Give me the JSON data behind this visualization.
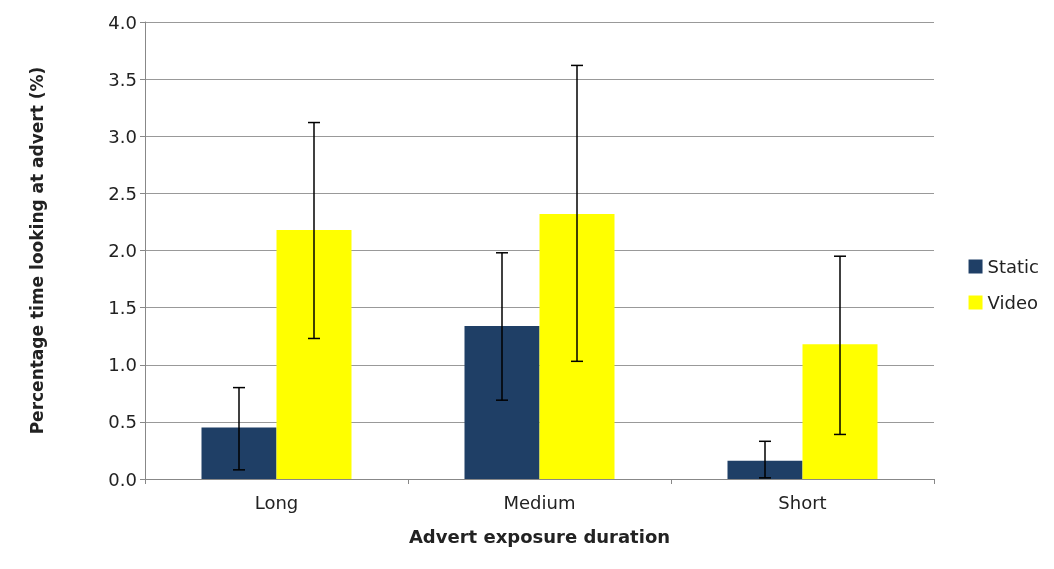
{
  "chart_data": {
    "type": "bar",
    "xlabel": "Advert exposure duration",
    "ylabel": "Percentage time looking at advert (%)",
    "categories": [
      "Long",
      "Medium",
      "Short"
    ],
    "series": [
      {
        "name": "Static",
        "color": "#1f3f66",
        "values": [
          0.45,
          1.34,
          0.16
        ],
        "errors": [
          [
            0.08,
            0.8
          ],
          [
            0.69,
            1.98
          ],
          [
            0.01,
            0.33
          ]
        ]
      },
      {
        "name": "Video",
        "color": "#ffff00",
        "values": [
          2.18,
          2.32,
          1.18
        ],
        "errors": [
          [
            1.23,
            3.12
          ],
          [
            1.03,
            3.62
          ],
          [
            0.39,
            1.95
          ]
        ]
      }
    ],
    "ylim": [
      0,
      4
    ],
    "yticks": [
      {
        "value": 0,
        "label": "0.0"
      },
      {
        "value": 0.5,
        "label": "0.5"
      },
      {
        "value": 1,
        "label": "1.0"
      },
      {
        "value": 1.5,
        "label": "1.5"
      },
      {
        "value": 2,
        "label": "2.0"
      },
      {
        "value": 2.5,
        "label": "2.5"
      },
      {
        "value": 3,
        "label": "3.0"
      },
      {
        "value": 3.5,
        "label": "3.5"
      },
      {
        "value": 4,
        "label": "4.0"
      }
    ],
    "grid": "y",
    "legend": "right"
  }
}
